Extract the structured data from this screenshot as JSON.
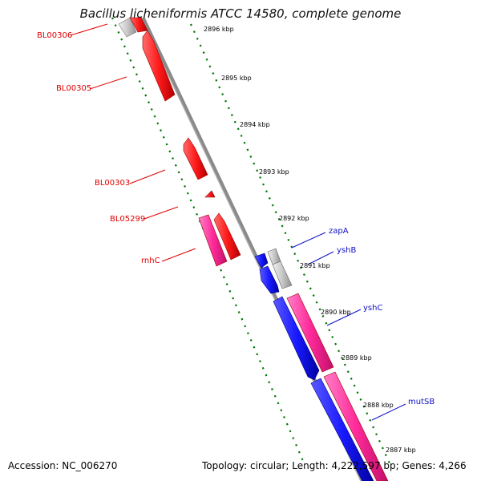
{
  "title": "Bacillus licheniformis ATCC 14580, complete genome",
  "accession_text": "Accession: NC_006270",
  "summary_text": "Topology: circular; Length: 4,222,597 bp; Genes: 4,266",
  "colors": {
    "reverse_gene": "#ff1a1a",
    "reverse_gene_light": "#ff4444",
    "forward_gene": "#1a1aff",
    "forward_gene_dark": "#0000cc",
    "rna_gene": "#ff2a9a",
    "other_gene": "#c8c8c8",
    "backbone": "#888888",
    "ticks": "#007700",
    "red_label": "#e00000",
    "blue_label": "#1010c8"
  },
  "scale_labels": [
    "2896 kbp",
    "2895 kbp",
    "2894 kbp",
    "2893 kbp",
    "2892 kbp",
    "2891 kbp",
    "2890 kbp",
    "2889 kbp",
    "2888 kbp",
    "2887 kbp"
  ],
  "gene_labels": {
    "left": [
      "BL00306",
      "BL00305",
      "BL00303",
      "BL05299",
      "rnhC"
    ],
    "right": [
      "zapA",
      "yshB",
      "yshC",
      "mutSB"
    ]
  }
}
